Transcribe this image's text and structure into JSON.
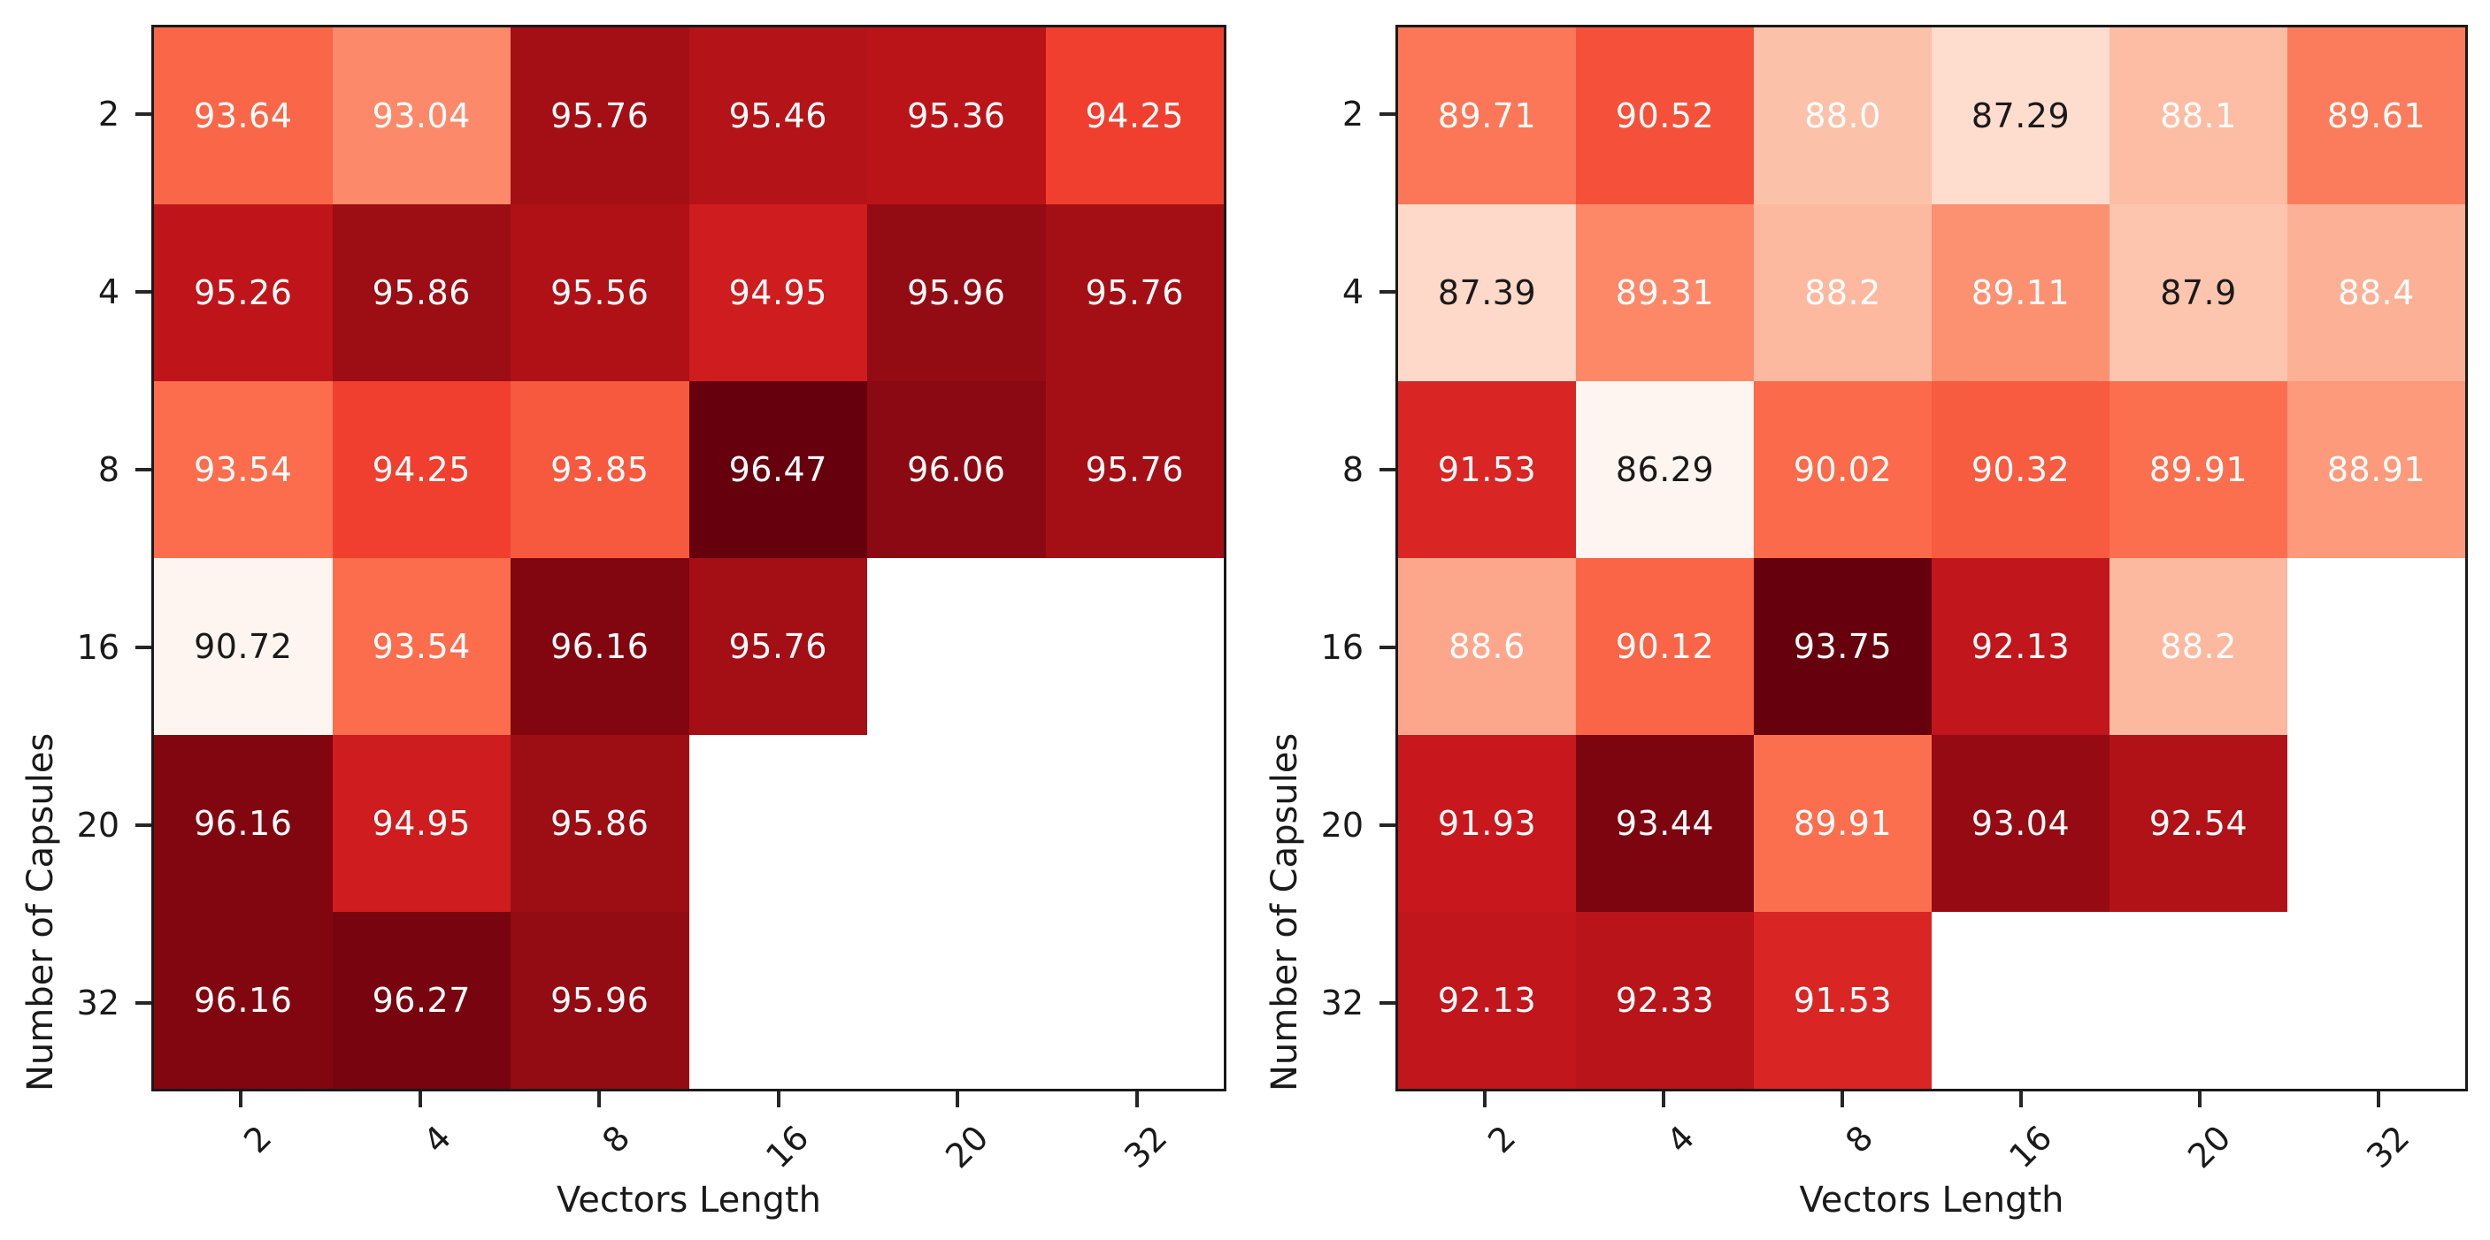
{
  "figure": {
    "background": "#ffffff",
    "spine_color": "#1a1a1a",
    "tick_color": "#262626",
    "annotation_light_text": "#ffffff",
    "annotation_dark_text": "#1a1a1a"
  },
  "colormap": {
    "name": "Reds",
    "stops": [
      {
        "t": 0.0,
        "color": "#fff5f0"
      },
      {
        "t": 0.125,
        "color": "#fee0d2"
      },
      {
        "t": 0.25,
        "color": "#fcbba1"
      },
      {
        "t": 0.375,
        "color": "#fc9272"
      },
      {
        "t": 0.5,
        "color": "#fb6a4a"
      },
      {
        "t": 0.625,
        "color": "#ef3b2c"
      },
      {
        "t": 0.75,
        "color": "#cb181d"
      },
      {
        "t": 0.875,
        "color": "#a50f15"
      },
      {
        "t": 1.0,
        "color": "#67000d"
      }
    ]
  },
  "chart_data": [
    {
      "type": "heatmap",
      "title": "",
      "xlabel": "Vectors Length",
      "ylabel": "Number of Capsules",
      "x_ticklabels": [
        "2",
        "4",
        "8",
        "16",
        "20",
        "32"
      ],
      "y_ticklabels": [
        "2",
        "4",
        "8",
        "16",
        "20",
        "32"
      ],
      "vmin": 90.72,
      "vmax": 96.47,
      "grid": false,
      "legend": "none",
      "rows": [
        {
          "y": "2",
          "cells": [
            "93.64",
            "93.04",
            "95.76",
            "95.46",
            "95.36",
            "94.25"
          ]
        },
        {
          "y": "4",
          "cells": [
            "95.26",
            "95.86",
            "95.56",
            "94.95",
            "95.96",
            "95.76"
          ]
        },
        {
          "y": "8",
          "cells": [
            "93.54",
            "94.25",
            "93.85",
            "96.47",
            "96.06",
            "95.76"
          ]
        },
        {
          "y": "16",
          "cells": [
            "90.72",
            "93.54",
            "96.16",
            "95.76",
            null,
            null
          ]
        },
        {
          "y": "20",
          "cells": [
            "96.16",
            "94.95",
            "95.86",
            null,
            null,
            null
          ]
        },
        {
          "y": "32",
          "cells": [
            "96.16",
            "96.27",
            "95.96",
            null,
            null,
            null
          ]
        }
      ]
    },
    {
      "type": "heatmap",
      "title": "",
      "xlabel": "Vectors Length",
      "ylabel": "Number of Capsules",
      "x_ticklabels": [
        "2",
        "4",
        "8",
        "16",
        "20",
        "32"
      ],
      "y_ticklabels": [
        "2",
        "4",
        "8",
        "16",
        "20",
        "32"
      ],
      "vmin": 86.29,
      "vmax": 93.75,
      "grid": false,
      "legend": "none",
      "rows": [
        {
          "y": "2",
          "cells": [
            "89.71",
            "90.52",
            "88.0",
            "87.29",
            "88.1",
            "89.61"
          ]
        },
        {
          "y": "4",
          "cells": [
            "87.39",
            "89.31",
            "88.2",
            "89.11",
            "87.9",
            "88.4"
          ]
        },
        {
          "y": "8",
          "cells": [
            "91.53",
            "86.29",
            "90.02",
            "90.32",
            "89.91",
            "88.91"
          ]
        },
        {
          "y": "16",
          "cells": [
            "88.6",
            "90.12",
            "93.75",
            "92.13",
            "88.2",
            null
          ]
        },
        {
          "y": "20",
          "cells": [
            "91.93",
            "93.44",
            "89.91",
            "93.04",
            "92.54",
            null
          ]
        },
        {
          "y": "32",
          "cells": [
            "92.13",
            "92.33",
            "91.53",
            null,
            null,
            null
          ]
        }
      ]
    }
  ]
}
